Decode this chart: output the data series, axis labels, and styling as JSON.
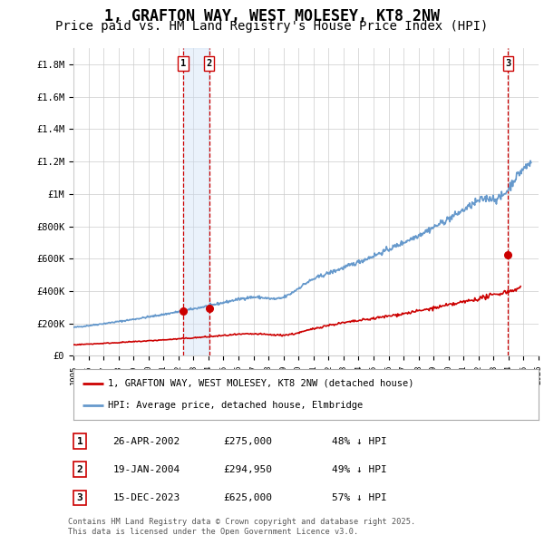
{
  "title": "1, GRAFTON WAY, WEST MOLESEY, KT8 2NW",
  "subtitle": "Price paid vs. HM Land Registry's House Price Index (HPI)",
  "title_fontsize": 12,
  "subtitle_fontsize": 10,
  "xlim": [
    1995,
    2026
  ],
  "ylim": [
    0,
    1900000
  ],
  "yticks": [
    0,
    200000,
    400000,
    600000,
    800000,
    1000000,
    1200000,
    1400000,
    1600000,
    1800000
  ],
  "ytick_labels": [
    "£0",
    "£200K",
    "£400K",
    "£600K",
    "£800K",
    "£1M",
    "£1.2M",
    "£1.4M",
    "£1.6M",
    "£1.8M"
  ],
  "xticks": [
    1995,
    1996,
    1997,
    1998,
    1999,
    2000,
    2001,
    2002,
    2003,
    2004,
    2005,
    2006,
    2007,
    2008,
    2009,
    2010,
    2011,
    2012,
    2013,
    2014,
    2015,
    2016,
    2017,
    2018,
    2019,
    2020,
    2021,
    2022,
    2023,
    2024,
    2025,
    2026
  ],
  "red_line_color": "#cc0000",
  "blue_line_color": "#6699cc",
  "transaction_color": "#cc0000",
  "vline_color": "#cc0000",
  "highlight_color": "#cce0f5",
  "grid_color": "#cccccc",
  "transactions": [
    {
      "num": 1,
      "date": "26-APR-2002",
      "year": 2002.32,
      "price": 275000,
      "pct": "48% ↓ HPI"
    },
    {
      "num": 2,
      "date": "19-JAN-2004",
      "year": 2004.05,
      "price": 294950,
      "pct": "49% ↓ HPI"
    },
    {
      "num": 3,
      "date": "15-DEC-2023",
      "year": 2023.96,
      "price": 625000,
      "pct": "57% ↓ HPI"
    }
  ],
  "legend_entries": [
    "1, GRAFTON WAY, WEST MOLESEY, KT8 2NW (detached house)",
    "HPI: Average price, detached house, Elmbridge"
  ],
  "footnote_line1": "Contains HM Land Registry data © Crown copyright and database right 2025.",
  "footnote_line2": "This data is licensed under the Open Government Licence v3.0.",
  "background_color": "#ffffff",
  "plot_bg_color": "#ffffff"
}
